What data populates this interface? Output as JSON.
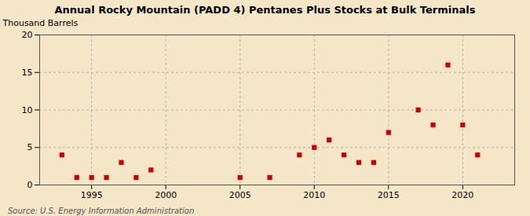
{
  "chart_data": {
    "type": "scatter",
    "title": "Annual Rocky Mountain (PADD 4) Pentanes Plus Stocks at Bulk Terminals",
    "ylabel": "Thousand Barrels",
    "source": "Source: U.S. Energy Information Administration",
    "x": [
      1993,
      1994,
      1995,
      1996,
      1997,
      1998,
      1999,
      2005,
      2007,
      2009,
      2010,
      2011,
      2012,
      2013,
      2014,
      2015,
      2017,
      2018,
      2019,
      2020,
      2021
    ],
    "values": [
      4,
      1,
      1,
      1,
      3,
      1,
      2,
      1,
      1,
      4,
      5,
      6,
      4,
      3,
      3,
      7,
      10,
      8,
      16,
      8,
      4
    ],
    "color": "#cc0000",
    "marker": "square",
    "xlim": [
      1991.5,
      2023.5
    ],
    "xticks": [
      1995,
      2000,
      2005,
      2010,
      2015,
      2020
    ],
    "ylim": [
      0,
      20
    ],
    "yticks": [
      0,
      5,
      10,
      15,
      20
    ],
    "grid": true
  }
}
